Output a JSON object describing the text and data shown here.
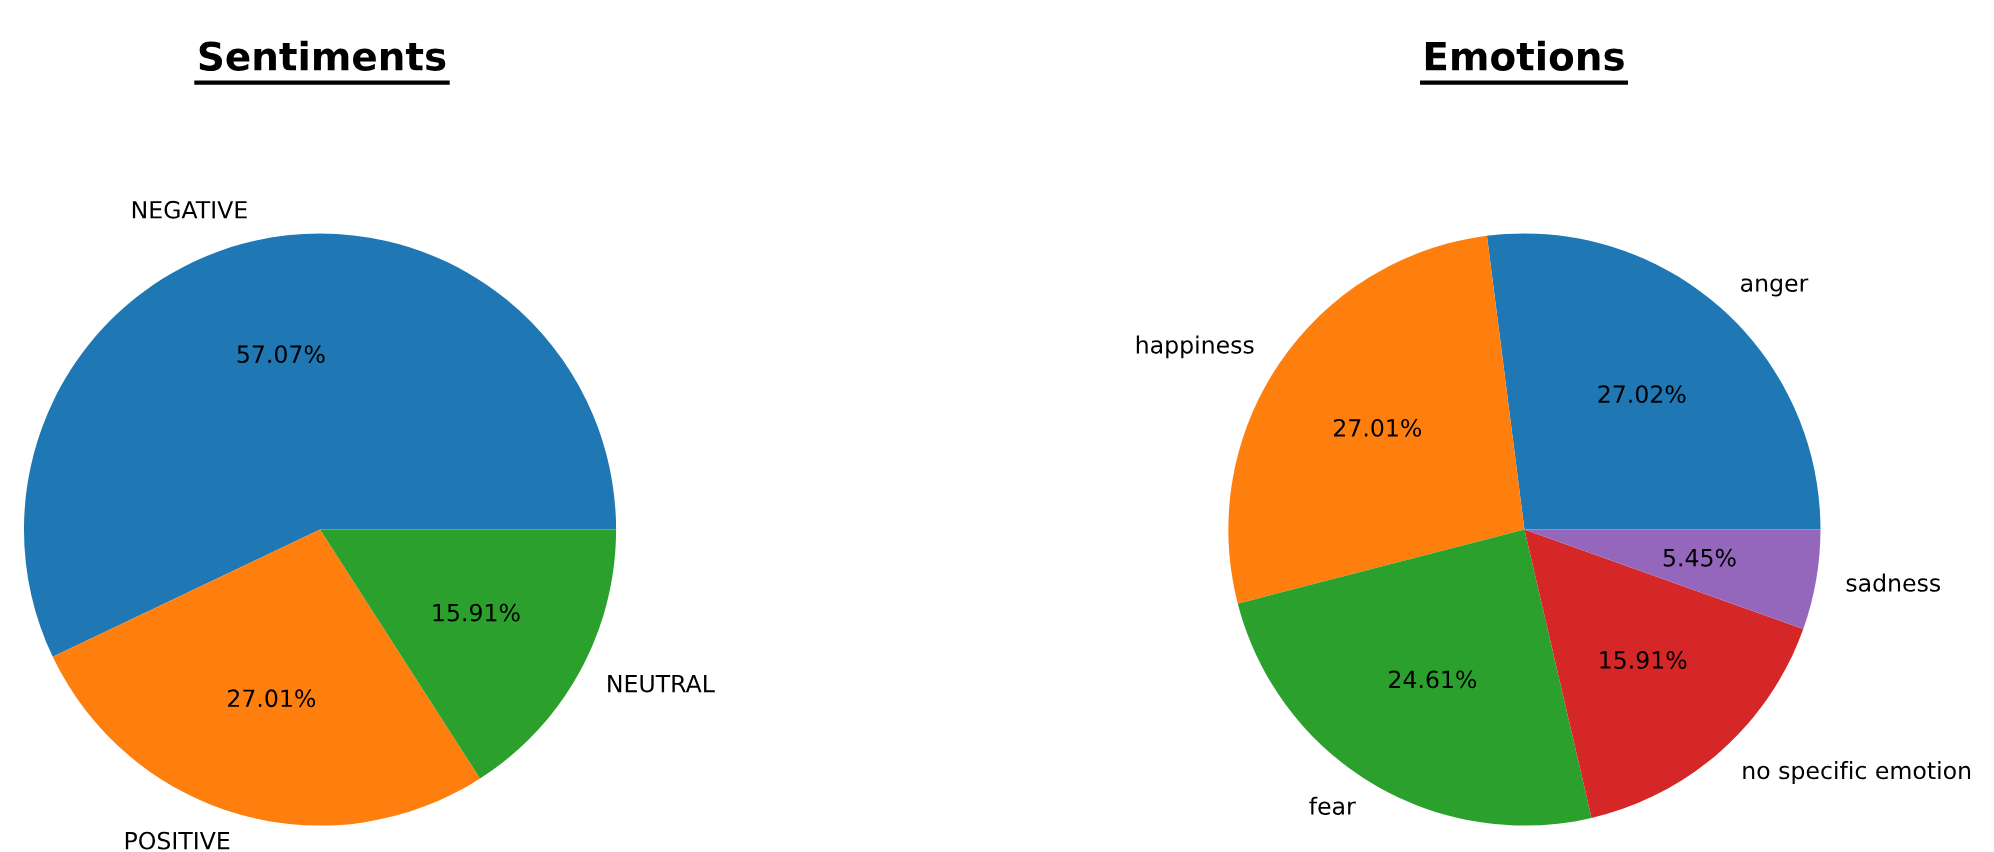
{
  "chart_data": [
    {
      "type": "pie",
      "title": "Sentiments",
      "categories": [
        "NEGATIVE",
        "POSITIVE",
        "NEUTRAL"
      ],
      "values": [
        57.07,
        27.01,
        15.91
      ],
      "colors": [
        "#1f77b4",
        "#ff7f0e",
        "#2ca02c"
      ],
      "value_labels": [
        "57.07%",
        "27.01%",
        "15.91%"
      ]
    },
    {
      "type": "pie",
      "title": "Emotions",
      "categories": [
        "anger",
        "happiness",
        "fear",
        "no specific emotion",
        "sadness"
      ],
      "values": [
        27.02,
        27.01,
        24.61,
        15.91,
        5.45
      ],
      "colors": [
        "#1f77b4",
        "#ff7f0e",
        "#2ca02c",
        "#d62728",
        "#9467bd"
      ],
      "value_labels": [
        "27.02%",
        "27.01%",
        "24.61%",
        "15.91%",
        "5.45%"
      ]
    }
  ]
}
